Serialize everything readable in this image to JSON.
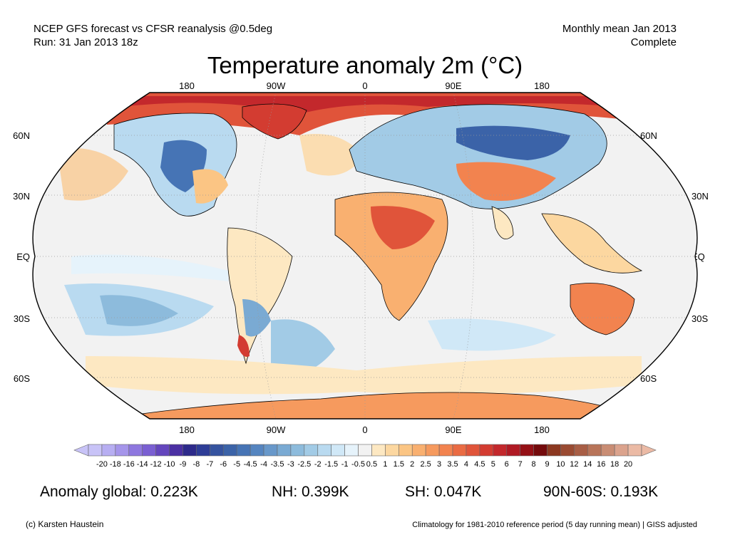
{
  "header": {
    "left_line1": "NCEP GFS forecast vs CFSR reanalysis @0.5deg",
    "left_line2": "Run: 31 Jan 2013 18z",
    "right_line1": "Monthly mean Jan 2013",
    "right_line2": "Complete"
  },
  "title": "Temperature anomaly 2m (°C)",
  "map": {
    "projection": "robinson",
    "longitude_labels": [
      "180",
      "90W",
      "0",
      "90E",
      "180"
    ],
    "latitude_labels": [
      "60N",
      "30N",
      "EQ",
      "30S",
      "60S"
    ],
    "ocean_color": "#f2f2f2",
    "land_outline_color": "#000000",
    "features": [
      {
        "name": "North America",
        "anomaly": "mixed"
      },
      {
        "name": "Eurasia",
        "anomaly": "cold north, warm south"
      },
      {
        "name": "Africa",
        "anomaly": "warm"
      },
      {
        "name": "Australia",
        "anomaly": "warm"
      },
      {
        "name": "Antarctica",
        "anomaly": "warm"
      },
      {
        "name": "Arctic",
        "anomaly": "warm"
      }
    ]
  },
  "colorbar": {
    "labels": [
      "-20",
      "-18",
      "-16",
      "-14",
      "-12",
      "-10",
      "-9",
      "-8",
      "-7",
      "-6",
      "-5",
      "-4.5",
      "-4",
      "-3.5",
      "-3",
      "-2.5",
      "-2",
      "-1.5",
      "-1",
      "-0.5",
      "0.5",
      "1",
      "1.5",
      "2",
      "2.5",
      "3",
      "3.5",
      "4",
      "4.5",
      "5",
      "6",
      "7",
      "8",
      "9",
      "10",
      "12",
      "14",
      "16",
      "18",
      "20"
    ],
    "colors": [
      "#c8c3f7",
      "#b7aef2",
      "#a595ea",
      "#8e77df",
      "#7a5fd2",
      "#6446bd",
      "#4b30a3",
      "#2d2a8b",
      "#2e3d97",
      "#35539f",
      "#3b63a8",
      "#4674b5",
      "#5585c0",
      "#6898ca",
      "#7aaad3",
      "#8dbbdc",
      "#a2cbe6",
      "#b9daf0",
      "#d0e8f7",
      "#e6f3fb",
      "#f2f2f2",
      "#fde8c2",
      "#fcd7a0",
      "#fbc584",
      "#f9b070",
      "#f69a5e",
      "#f2834f",
      "#ea6b43",
      "#e0543a",
      "#d33c31",
      "#c3282c",
      "#b01a24",
      "#951016",
      "#740a0c",
      "#8c3820",
      "#9a4b32",
      "#a85e45",
      "#b87459",
      "#c98d74",
      "#dba38d",
      "#ebbaa5"
    ]
  },
  "stats": {
    "global": "Anomaly global: 0.223K",
    "nh": "NH: 0.399K",
    "sh": "SH: 0.047K",
    "polar": "90N-60S: 0.193K"
  },
  "footer": {
    "credit": "(c) Karsten Haustein",
    "climatology": "Climatology for 1981-2010 reference period (5 day running mean) | GISS adjusted"
  }
}
